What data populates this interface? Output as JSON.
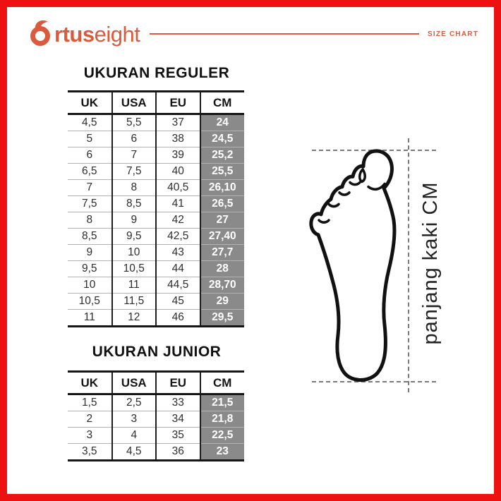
{
  "brand": {
    "full_name": "Ortuseight",
    "name_bold": "rtus",
    "name_light": "eight"
  },
  "header": {
    "tag": "SIZE CHART"
  },
  "sections": {
    "reguler": {
      "title": "UKURAN REGULER",
      "columns": [
        "UK",
        "USA",
        "EU",
        "CM"
      ],
      "rows": [
        [
          "4,5",
          "5,5",
          "37",
          "24"
        ],
        [
          "5",
          "6",
          "38",
          "24,5"
        ],
        [
          "6",
          "7",
          "39",
          "25,2"
        ],
        [
          "6,5",
          "7,5",
          "40",
          "25,5"
        ],
        [
          "7",
          "8",
          "40,5",
          "26,10"
        ],
        [
          "7,5",
          "8,5",
          "41",
          "26,5"
        ],
        [
          "8",
          "9",
          "42",
          "27"
        ],
        [
          "8,5",
          "9,5",
          "42,5",
          "27,40"
        ],
        [
          "9",
          "10",
          "43",
          "27,7"
        ],
        [
          "9,5",
          "10,5",
          "44",
          "28"
        ],
        [
          "10",
          "11",
          "44,5",
          "28,70"
        ],
        [
          "10,5",
          "11,5",
          "45",
          "29"
        ],
        [
          "11",
          "12",
          "46",
          "29,5"
        ]
      ]
    },
    "junior": {
      "title": "UKURAN JUNIOR",
      "columns": [
        "UK",
        "USA",
        "EU",
        "CM"
      ],
      "rows": [
        [
          "1,5",
          "2,5",
          "33",
          "21,5"
        ],
        [
          "2",
          "3",
          "34",
          "21,8"
        ],
        [
          "3",
          "4",
          "35",
          "22,5"
        ],
        [
          "3,5",
          "4,5",
          "36",
          "23"
        ]
      ]
    }
  },
  "diagram": {
    "label": "panjang kaki CM"
  },
  "colors": {
    "accent": "#DB5A3C",
    "frame": "#EE1111",
    "cm_cell_bg": "#8A8A8A",
    "cm_cell_text": "#FFFFFF"
  }
}
